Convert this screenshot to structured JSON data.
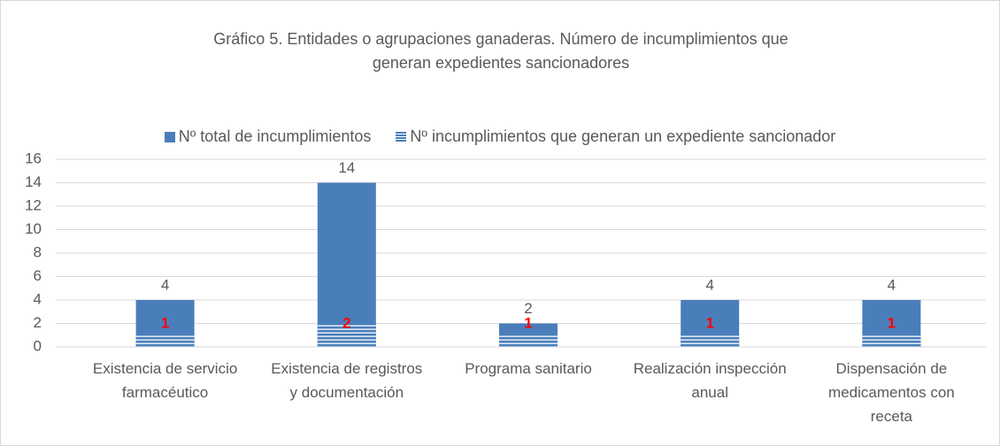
{
  "chart_data": {
    "type": "bar",
    "title": "Gráfico 5. Entidades o agrupaciones ganaderas. Número de incumplimientos que generan expedientes sancionadores",
    "categories": [
      "Existencia de servicio farmacéutico",
      "Existencia de registros y documentación",
      "Programa sanitario",
      "Realización inspección anual",
      "Dispensación de medicamentos con receta"
    ],
    "series": [
      {
        "name": "Nº total de incumplimientos",
        "color": "#4a7ebb",
        "values": [
          4,
          14,
          2,
          4,
          4
        ]
      },
      {
        "name": "Nº incumplimientos que generan un expediente sancionador",
        "color": "#4a7ebb",
        "label_color": "#ff0000",
        "pattern": "horizontal-stripes",
        "values": [
          1,
          2,
          1,
          1,
          1
        ]
      }
    ],
    "ylim": [
      0,
      16
    ],
    "yticks": [
      0,
      2,
      4,
      6,
      8,
      10,
      12,
      14,
      16
    ],
    "grid": true,
    "legend": "top"
  }
}
